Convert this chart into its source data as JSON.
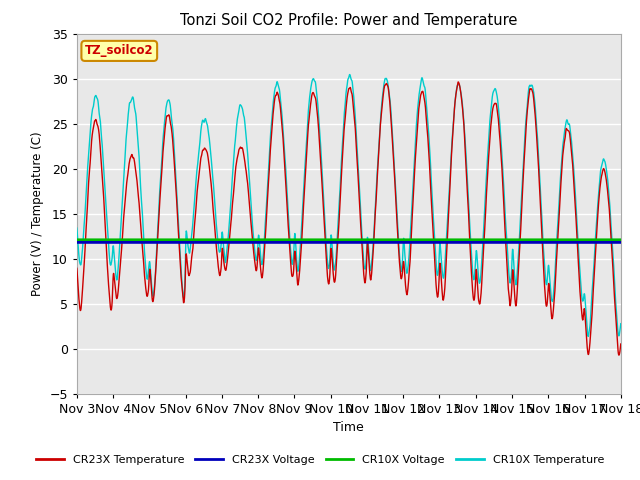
{
  "title": "Tonzi Soil CO2 Profile: Power and Temperature",
  "xlabel": "Time",
  "ylabel": "Power (V) / Temperature (C)",
  "ylim": [
    -5,
    35
  ],
  "yticks": [
    -5,
    0,
    5,
    10,
    15,
    20,
    25,
    30,
    35
  ],
  "plot_bg_color": "#e8e8e8",
  "cr23x_voltage_value": 11.8,
  "cr10x_voltage_value": 12.05,
  "cr23x_color": "#cc0000",
  "cr23x_voltage_color": "#0000bb",
  "cr10x_voltage_color": "#00bb00",
  "cr10x_color": "#00cccc",
  "x_start_day": 3,
  "x_end_day": 18,
  "xtick_days": [
    3,
    4,
    5,
    6,
    7,
    8,
    9,
    10,
    11,
    12,
    13,
    14,
    15,
    16,
    17,
    18
  ],
  "label_box_color": "#ffffaa",
  "label_box_edge": "#cc8800",
  "label_text": "TZ_soilco2",
  "label_text_color": "#cc0000",
  "legend_labels": [
    "CR23X Temperature",
    "CR23X Voltage",
    "CR10X Voltage",
    "CR10X Temperature"
  ],
  "legend_colors": [
    "#cc0000",
    "#0000bb",
    "#00bb00",
    "#00cccc"
  ]
}
